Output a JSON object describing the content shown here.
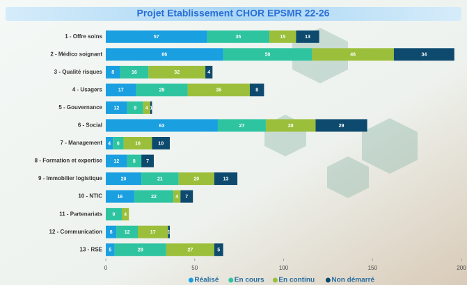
{
  "chart_data": {
    "type": "stacked-bar-horizontal",
    "title": "Projet Etablissement CHOR EPSMR 22-26",
    "categories": [
      "1 - Offre soins",
      "2 - Médico soignant",
      "3 - Qualité risques",
      "4 - Usagers",
      "5 - Gouvernance",
      "6 - Social",
      "7 - Management",
      "8 - Formation et expertise",
      "9 - Immobilier logistique",
      "10 - NTIC",
      "11 - Partenariats",
      "12 - Communication",
      "13 - RSE"
    ],
    "series": [
      {
        "name": "Réalisé",
        "color": "#1a9fe0",
        "values": [
          57,
          66,
          8,
          17,
          12,
          63,
          4,
          12,
          20,
          16,
          null,
          6,
          5
        ]
      },
      {
        "name": "En cours",
        "color": "#2ec4a0",
        "values": [
          35,
          50,
          16,
          29,
          9,
          27,
          6,
          8,
          21,
          22,
          9,
          12,
          29
        ]
      },
      {
        "name": "En continu",
        "color": "#9bbf3a",
        "values": [
          15,
          46,
          32,
          35,
          4,
          28,
          16,
          null,
          20,
          4,
          4,
          17,
          27
        ]
      },
      {
        "name": "Non démarré",
        "color": "#0d4a6e",
        "values": [
          13,
          34,
          4,
          8,
          1,
          29,
          10,
          7,
          13,
          7,
          null,
          1,
          5
        ]
      }
    ],
    "xlim": [
      0,
      200
    ],
    "xticks": [
      0,
      50,
      100,
      150,
      200
    ]
  }
}
